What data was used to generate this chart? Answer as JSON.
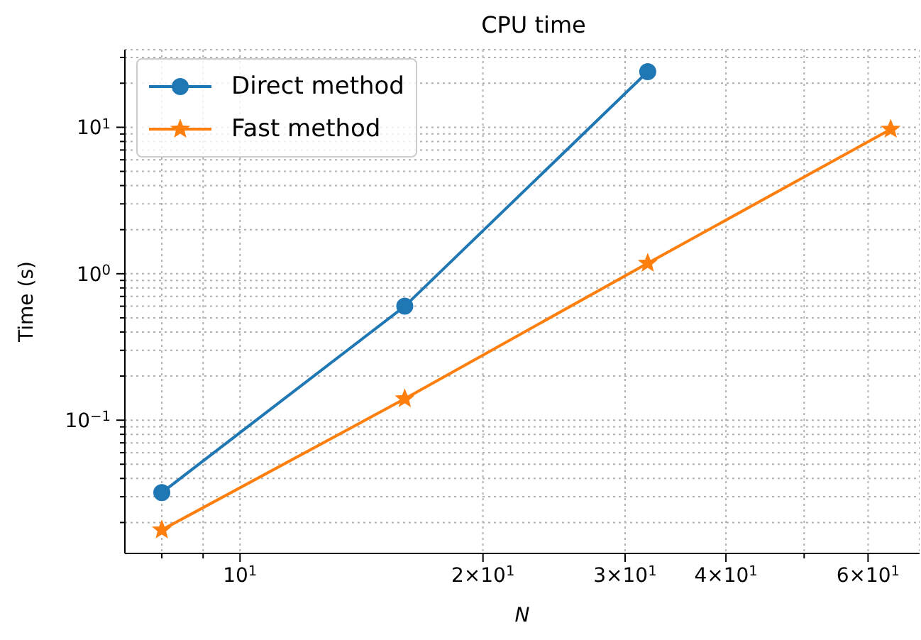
{
  "chart_data": {
    "type": "line",
    "title": "CPU time",
    "xlabel": "N",
    "ylabel": "Time (s)",
    "log": "xy",
    "grid": true,
    "legend": "top left",
    "x": [
      8,
      16,
      32,
      64
    ],
    "series": [
      {
        "name": "Direct method",
        "color": "#1f77b4",
        "marker": "circle",
        "values": [
          0.032,
          0.6,
          24,
          null
        ]
      },
      {
        "name": "Fast method",
        "color": "#ff7f0e",
        "marker": "star",
        "values": [
          0.0178,
          0.14,
          1.18,
          9.7
        ]
      }
    ],
    "xlim": [
      7.2,
      69.5
    ],
    "ylim": [
      0.0123,
      33.9
    ],
    "xticks": [
      {
        "value": 8,
        "label": null
      },
      {
        "value": 9,
        "label": null
      },
      {
        "value": 10,
        "label": "10$^{1}$"
      },
      {
        "value": 20,
        "label": "2×10$^{1}$"
      },
      {
        "value": 30,
        "label": "3×10$^{1}$"
      },
      {
        "value": 40,
        "label": "4×10$^{1}$"
      },
      {
        "value": 50,
        "label": null
      },
      {
        "value": 60,
        "label": "6×10$^{1}$"
      }
    ],
    "yticks": [
      {
        "value": 0.02,
        "label": null
      },
      {
        "value": 0.03,
        "label": null
      },
      {
        "value": 0.04,
        "label": null
      },
      {
        "value": 0.05,
        "label": null
      },
      {
        "value": 0.06,
        "label": null
      },
      {
        "value": 0.07,
        "label": null
      },
      {
        "value": 0.08,
        "label": null
      },
      {
        "value": 0.09,
        "label": null
      },
      {
        "value": 0.1,
        "label": "10$^{−1}$"
      },
      {
        "value": 0.2,
        "label": null
      },
      {
        "value": 0.3,
        "label": null
      },
      {
        "value": 0.4,
        "label": null
      },
      {
        "value": 0.5,
        "label": null
      },
      {
        "value": 0.6,
        "label": null
      },
      {
        "value": 0.7,
        "label": null
      },
      {
        "value": 0.8,
        "label": null
      },
      {
        "value": 0.9,
        "label": null
      },
      {
        "value": 1,
        "label": "10$^{0}$"
      },
      {
        "value": 2,
        "label": null
      },
      {
        "value": 3,
        "label": null
      },
      {
        "value": 4,
        "label": null
      },
      {
        "value": 5,
        "label": null
      },
      {
        "value": 6,
        "label": null
      },
      {
        "value": 7,
        "label": null
      },
      {
        "value": 8,
        "label": null
      },
      {
        "value": 9,
        "label": null
      },
      {
        "value": 10,
        "label": "10$^{1}$"
      },
      {
        "value": 20,
        "label": null
      },
      {
        "value": 30,
        "label": null
      }
    ]
  }
}
